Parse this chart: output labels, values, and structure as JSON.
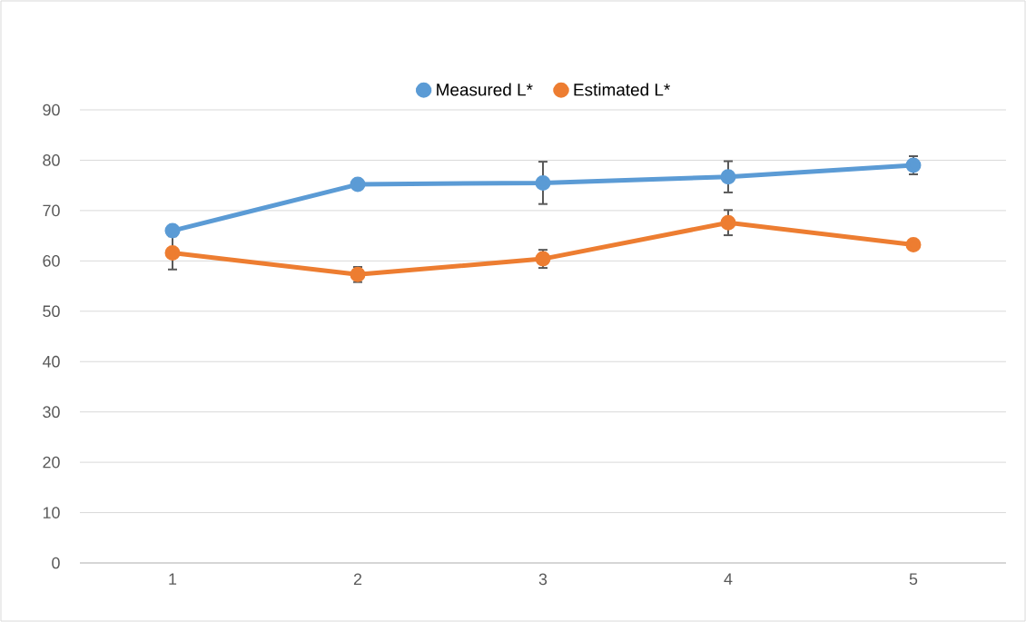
{
  "chart_data": {
    "type": "line",
    "categories": [
      "1",
      "2",
      "3",
      "4",
      "5"
    ],
    "series": [
      {
        "name": "Measured L*",
        "color": "#5b9bd5",
        "values": [
          66.0,
          75.2,
          75.5,
          76.7,
          79.0
        ],
        "errors": [
          null,
          null,
          4.2,
          3.1,
          1.8
        ]
      },
      {
        "name": "Estimated L*",
        "color": "#ed7d31",
        "values": [
          61.6,
          57.3,
          60.4,
          67.6,
          63.2
        ],
        "errors": [
          3.3,
          1.5,
          1.8,
          2.5,
          null
        ]
      }
    ],
    "ylim": [
      0,
      90
    ],
    "yticks": [
      0,
      10,
      20,
      30,
      40,
      50,
      60,
      70,
      80,
      90
    ],
    "grid": "y",
    "legend": "top",
    "marker": "circle",
    "line_style": "solid"
  }
}
